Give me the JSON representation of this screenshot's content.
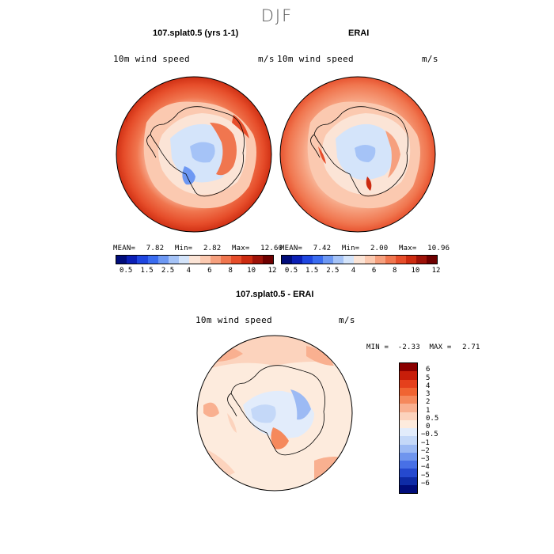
{
  "figure_title": "DJF",
  "panels": [
    {
      "title": "107.splat0.5 (yrs 1-1)",
      "variable": "10m wind speed",
      "units": "m/s",
      "stats": {
        "mean_label": "MEAN=",
        "mean": "7.82",
        "min_label": "Min=",
        "min": "2.82",
        "max_label": "Max=",
        "max": "12.60"
      }
    },
    {
      "title": "ERAI",
      "variable": "10m wind speed",
      "units": "m/s",
      "stats": {
        "mean_label": "MEAN=",
        "mean": "7.42",
        "min_label": "Min=",
        "min": "2.00",
        "max_label": "Max=",
        "max": "10.96"
      }
    },
    {
      "title": "107.splat0.5 - ERAI",
      "variable": "10m wind speed",
      "units": "m/s",
      "stats": {
        "min_label": "MIN =",
        "min": "-2.33",
        "max_label": "MAX =",
        "max": "2.71"
      }
    }
  ],
  "field_colorbar": {
    "tick_labels": [
      "0.5",
      "1.5",
      "2.5",
      "4",
      "6",
      "8",
      "10",
      "12"
    ],
    "colors": [
      "#000c7a",
      "#0b1fb5",
      "#1f46e0",
      "#3a6cf0",
      "#6d98f3",
      "#a5c3f7",
      "#d4e4fa",
      "#fbe4d6",
      "#fbc9b0",
      "#f6a07e",
      "#f0764f",
      "#e64d2a",
      "#cc2b10",
      "#9e1208",
      "#6e0000"
    ]
  },
  "diff_colorbar": {
    "tick_labels": [
      "6",
      "5",
      "4",
      "3",
      "2",
      "1",
      "0.5",
      "0",
      "−0.5",
      "−1",
      "−2",
      "−3",
      "−4",
      "−5",
      "−6"
    ],
    "colors": [
      "#8b0000",
      "#c81e0a",
      "#e5401c",
      "#f06432",
      "#f5895c",
      "#f9b090",
      "#fcd3bd",
      "#fdebdd",
      "#e2ecfb",
      "#c4d8f8",
      "#9cbaf4",
      "#6f95ee",
      "#4870e6",
      "#2549cf",
      "#0e2ba6",
      "#000c7a"
    ]
  }
}
